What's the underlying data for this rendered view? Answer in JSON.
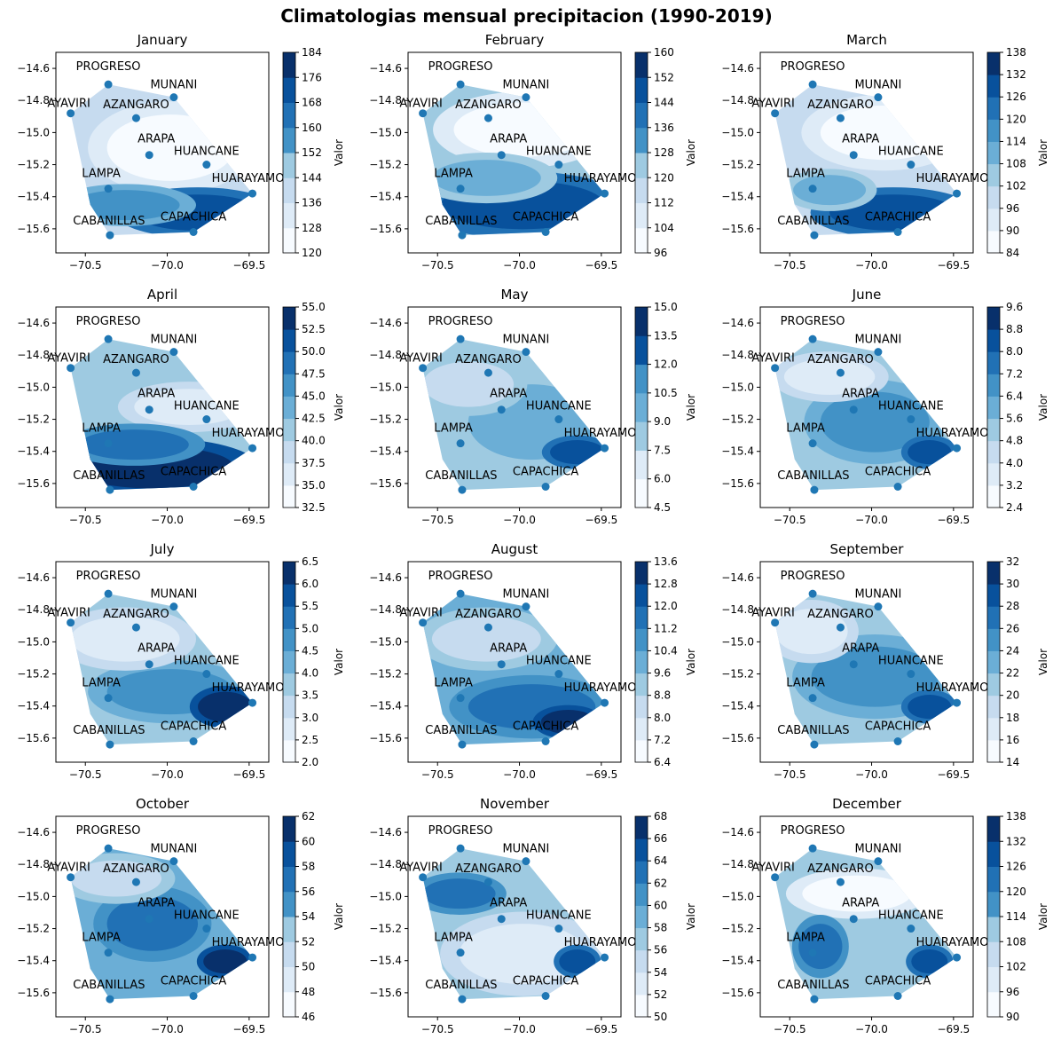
{
  "figure": {
    "title": "Climatologias mensual precipitacion  (1990-2019)"
  },
  "colorbar_label": "Valor",
  "stations": [
    {
      "name": "PROGRESO",
      "x": -70.36,
      "y": -14.7
    },
    {
      "name": "MUNANI",
      "x": -69.96,
      "y": -14.78
    },
    {
      "name": "AYAVIRI",
      "x": -70.59,
      "y": -14.88
    },
    {
      "name": "AZANGARO",
      "x": -70.19,
      "y": -14.91
    },
    {
      "name": "ARAPA",
      "x": -70.11,
      "y": -15.14
    },
    {
      "name": "HUANCANE",
      "x": -69.76,
      "y": -15.2
    },
    {
      "name": "LAMPA",
      "x": -70.36,
      "y": -15.35
    },
    {
      "name": "HUARAYAMO",
      "x": -69.48,
      "y": -15.38
    },
    {
      "name": "CABANILLAS",
      "x": -70.35,
      "y": -15.64
    },
    {
      "name": "CAPACHICA",
      "x": -69.84,
      "y": -15.62
    }
  ],
  "axes": {
    "xticks": [
      "−70.5",
      "−70.0",
      "−69.5"
    ],
    "yticks": [
      "−14.6",
      "−14.8",
      "−15.0",
      "−15.2",
      "−15.4",
      "−15.6"
    ]
  },
  "chart_data": [
    {
      "type": "heatmap",
      "title": "January",
      "xlim": [
        -70.68,
        -69.38
      ],
      "ylim": [
        -15.75,
        -14.5
      ],
      "colorbar_ticks": [
        "120",
        "128",
        "136",
        "144",
        "152",
        "160",
        "168",
        "176",
        "184"
      ],
      "grid": false
    },
    {
      "type": "heatmap",
      "title": "February",
      "xlim": [
        -70.68,
        -69.38
      ],
      "ylim": [
        -15.75,
        -14.5
      ],
      "colorbar_ticks": [
        "96",
        "104",
        "112",
        "120",
        "128",
        "136",
        "144",
        "152",
        "160"
      ],
      "grid": false
    },
    {
      "type": "heatmap",
      "title": "March",
      "xlim": [
        -70.68,
        -69.38
      ],
      "ylim": [
        -15.75,
        -14.5
      ],
      "colorbar_ticks": [
        "84",
        "90",
        "96",
        "102",
        "108",
        "114",
        "120",
        "126",
        "132",
        "138"
      ],
      "grid": false
    },
    {
      "type": "heatmap",
      "title": "April",
      "xlim": [
        -70.68,
        -69.38
      ],
      "ylim": [
        -15.75,
        -14.5
      ],
      "colorbar_ticks": [
        "32.5",
        "35.0",
        "37.5",
        "40.0",
        "42.5",
        "45.0",
        "47.5",
        "50.0",
        "52.5",
        "55.0"
      ],
      "grid": false
    },
    {
      "type": "heatmap",
      "title": "May",
      "xlim": [
        -70.68,
        -69.38
      ],
      "ylim": [
        -15.75,
        -14.5
      ],
      "colorbar_ticks": [
        "4.5",
        "6.0",
        "7.5",
        "9.0",
        "10.5",
        "12.0",
        "13.5",
        "15.0"
      ],
      "grid": false
    },
    {
      "type": "heatmap",
      "title": "June",
      "xlim": [
        -70.68,
        -69.38
      ],
      "ylim": [
        -15.75,
        -14.5
      ],
      "colorbar_ticks": [
        "2.4",
        "3.2",
        "4.0",
        "4.8",
        "5.6",
        "6.4",
        "7.2",
        "8.0",
        "8.8",
        "9.6"
      ],
      "grid": false
    },
    {
      "type": "heatmap",
      "title": "July",
      "xlim": [
        -70.68,
        -69.38
      ],
      "ylim": [
        -15.75,
        -14.5
      ],
      "colorbar_ticks": [
        "2.0",
        "2.5",
        "3.0",
        "3.5",
        "4.0",
        "4.5",
        "5.0",
        "5.5",
        "6.0",
        "6.5"
      ],
      "grid": false
    },
    {
      "type": "heatmap",
      "title": "August",
      "xlim": [
        -70.68,
        -69.38
      ],
      "ylim": [
        -15.75,
        -14.5
      ],
      "colorbar_ticks": [
        "6.4",
        "7.2",
        "8.0",
        "8.8",
        "9.6",
        "10.4",
        "11.2",
        "12.0",
        "12.8",
        "13.6"
      ],
      "grid": false
    },
    {
      "type": "heatmap",
      "title": "September",
      "xlim": [
        -70.68,
        -69.38
      ],
      "ylim": [
        -15.75,
        -14.5
      ],
      "colorbar_ticks": [
        "14",
        "16",
        "18",
        "20",
        "22",
        "24",
        "26",
        "28",
        "30",
        "32"
      ],
      "grid": false
    },
    {
      "type": "heatmap",
      "title": "October",
      "xlim": [
        -70.68,
        -69.38
      ],
      "ylim": [
        -15.75,
        -14.5
      ],
      "colorbar_ticks": [
        "46",
        "48",
        "50",
        "52",
        "54",
        "56",
        "58",
        "60",
        "62"
      ],
      "grid": false
    },
    {
      "type": "heatmap",
      "title": "November",
      "xlim": [
        -70.68,
        -69.38
      ],
      "ylim": [
        -15.75,
        -14.5
      ],
      "colorbar_ticks": [
        "50",
        "52",
        "54",
        "56",
        "58",
        "60",
        "62",
        "64",
        "66",
        "68"
      ],
      "grid": false
    },
    {
      "type": "heatmap",
      "title": "December",
      "xlim": [
        -70.68,
        -69.38
      ],
      "ylim": [
        -15.75,
        -14.5
      ],
      "colorbar_ticks": [
        "90",
        "96",
        "102",
        "108",
        "114",
        "120",
        "126",
        "132",
        "138"
      ],
      "grid": false
    }
  ],
  "colors": {
    "point": "#1f77b4",
    "ramp": [
      "#f7fbff",
      "#deebf7",
      "#c6dbef",
      "#9ecae1",
      "#6baed6",
      "#4292c6",
      "#2171b5",
      "#08519c",
      "#08306b"
    ]
  }
}
